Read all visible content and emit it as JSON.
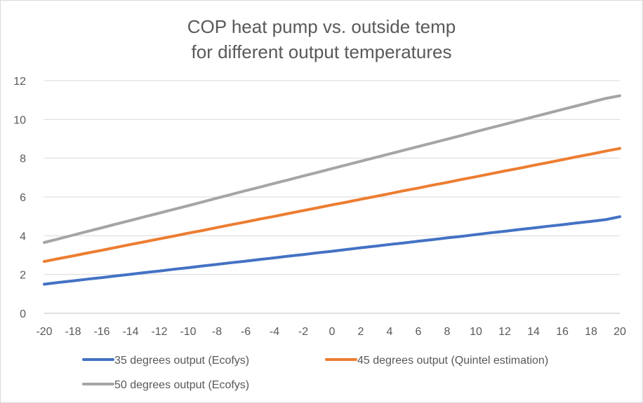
{
  "chart_data": {
    "type": "line",
    "title": [
      "COP heat pump vs. outside temp",
      "for different output temperatures"
    ],
    "xlabel": "",
    "ylabel": "",
    "xlim": [
      -20,
      20
    ],
    "ylim": [
      0,
      12
    ],
    "x_ticks": [
      -20,
      -18,
      -16,
      -14,
      -12,
      -10,
      -8,
      -6,
      -4,
      -2,
      0,
      2,
      4,
      6,
      8,
      10,
      12,
      14,
      16,
      18,
      20
    ],
    "y_ticks": [
      0,
      2,
      4,
      6,
      8,
      10,
      12
    ],
    "grid": "horizontal",
    "legend_position": "bottom",
    "x": [
      -20,
      -19,
      -18,
      -17,
      -16,
      -15,
      -14,
      -13,
      -12,
      -11,
      -10,
      -9,
      -8,
      -7,
      -6,
      -5,
      -4,
      -3,
      -2,
      -1,
      0,
      1,
      2,
      3,
      4,
      5,
      6,
      7,
      8,
      9,
      10,
      11,
      12,
      13,
      14,
      15,
      16,
      17,
      18,
      19,
      20
    ],
    "series": [
      {
        "name": "35 degrees output (Ecofys)",
        "color": "#4472c4",
        "values": [
          1.5,
          1.59,
          1.67,
          1.76,
          1.84,
          1.93,
          2.01,
          2.1,
          2.18,
          2.27,
          2.35,
          2.44,
          2.52,
          2.61,
          2.69,
          2.78,
          2.86,
          2.95,
          3.03,
          3.12,
          3.2,
          3.29,
          3.38,
          3.46,
          3.55,
          3.63,
          3.72,
          3.8,
          3.89,
          3.97,
          4.06,
          4.15,
          4.23,
          4.32,
          4.4,
          4.49,
          4.57,
          4.66,
          4.74,
          4.83,
          4.98
        ]
      },
      {
        "name": "45 degrees output (Quintel estimation)",
        "color": "#ed7d31",
        "values": [
          2.67,
          2.82,
          2.96,
          3.11,
          3.25,
          3.4,
          3.55,
          3.69,
          3.84,
          3.98,
          4.13,
          4.27,
          4.42,
          4.57,
          4.71,
          4.86,
          5.0,
          5.15,
          5.3,
          5.44,
          5.59,
          5.73,
          5.88,
          6.02,
          6.17,
          6.32,
          6.46,
          6.61,
          6.75,
          6.9,
          7.04,
          7.19,
          7.34,
          7.48,
          7.63,
          7.77,
          7.92,
          8.07,
          8.21,
          8.36,
          8.5
        ]
      },
      {
        "name": "50 degrees output (Ecofys)",
        "color": "#a5a5a5",
        "values": [
          3.65,
          3.84,
          4.03,
          4.22,
          4.41,
          4.6,
          4.79,
          4.98,
          5.17,
          5.36,
          5.55,
          5.74,
          5.94,
          6.13,
          6.32,
          6.51,
          6.7,
          6.89,
          7.08,
          7.27,
          7.46,
          7.65,
          7.84,
          8.03,
          8.22,
          8.41,
          8.6,
          8.79,
          8.98,
          9.17,
          9.37,
          9.56,
          9.75,
          9.94,
          10.13,
          10.32,
          10.51,
          10.7,
          10.89,
          11.08,
          11.22
        ]
      }
    ]
  }
}
